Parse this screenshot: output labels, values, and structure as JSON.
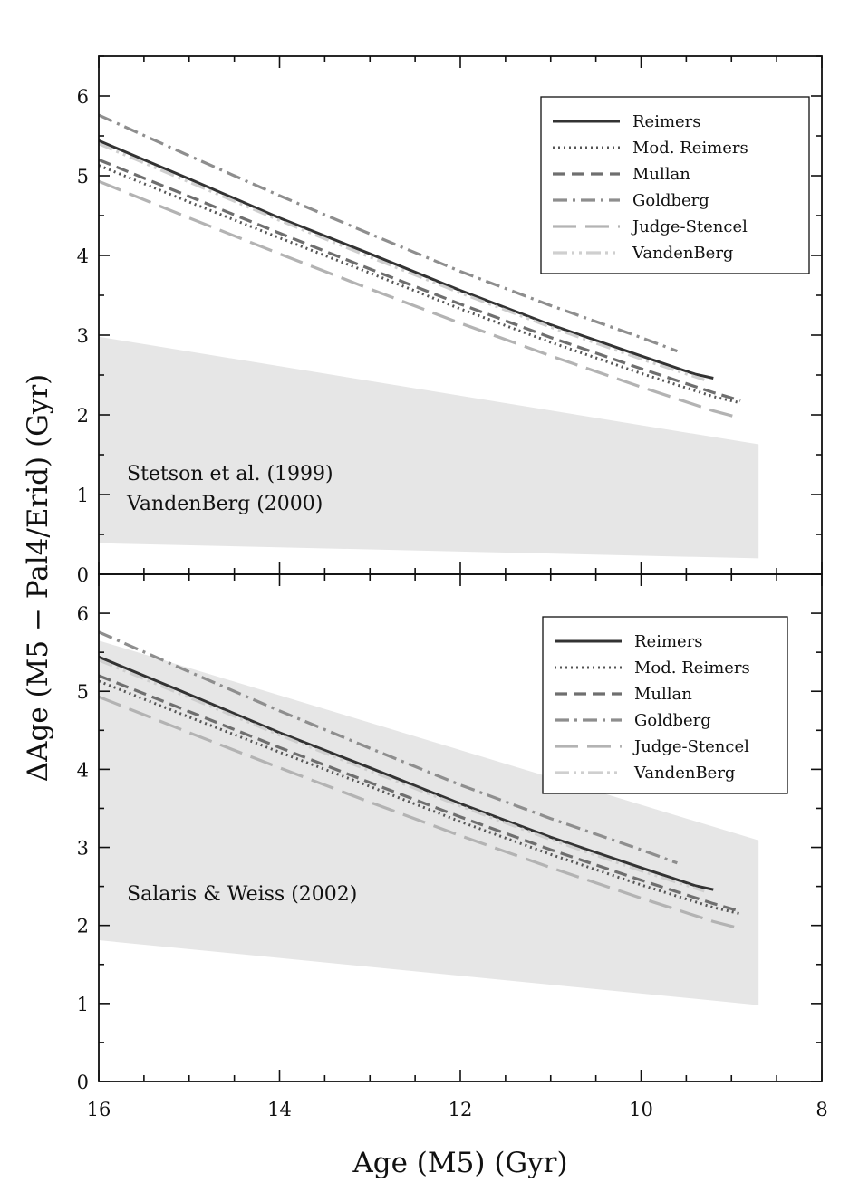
{
  "figure": {
    "xlabel": "Age (M5) (Gyr)",
    "ylabel": "ΔAge (M5 − Pal4/Erid) (Gyr)",
    "xlim": [
      16,
      8
    ],
    "xticks": [
      "16",
      "14",
      "12",
      "10",
      "8"
    ],
    "colors": {
      "band": "#e6e6e6",
      "axes": "#111111",
      "Reimers": "#333333",
      "Mod. Reimers": "#555555",
      "Mullan": "#6f6f6f",
      "Goldberg": "#8e8e8e",
      "Judge-Stencel": "#b3b3b3",
      "VandenBerg": "#cfcfcf"
    }
  },
  "chart_data": [
    {
      "type": "line",
      "panel": "top",
      "ylim": [
        0,
        6.5
      ],
      "yticks": [
        "0",
        "1",
        "2",
        "3",
        "4",
        "5",
        "6"
      ],
      "annotation": [
        "Stetson et al. (1999)",
        "VandenBerg (2000)"
      ],
      "legend_position": "top-right",
      "band": {
        "x": [
          16,
          8.7
        ],
        "upper": [
          2.98,
          1.63
        ],
        "lower": [
          0.39,
          0.2
        ]
      },
      "series": [
        {
          "name": "Reimers",
          "style": "solid",
          "x": [
            16,
            15,
            14,
            13,
            12,
            11,
            10,
            9.4,
            9.2
          ],
          "y": [
            5.44,
            4.96,
            4.47,
            4.02,
            3.56,
            3.13,
            2.74,
            2.51,
            2.46
          ]
        },
        {
          "name": "Mod. Reimers",
          "style": "dotted",
          "x": [
            16,
            15,
            14,
            13,
            12,
            11,
            10,
            9.2,
            8.9
          ],
          "y": [
            5.13,
            4.67,
            4.22,
            3.78,
            3.33,
            2.91,
            2.52,
            2.23,
            2.15
          ]
        },
        {
          "name": "Mullan",
          "style": "dashed",
          "x": [
            16,
            15,
            14,
            13,
            12,
            11,
            10,
            9.2,
            8.9
          ],
          "y": [
            5.2,
            4.74,
            4.28,
            3.83,
            3.39,
            2.97,
            2.58,
            2.28,
            2.18
          ]
        },
        {
          "name": "Goldberg",
          "style": "dashdot",
          "x": [
            16,
            15,
            14,
            13,
            12,
            11,
            10,
            9.6
          ],
          "y": [
            5.76,
            5.25,
            4.75,
            4.27,
            3.8,
            3.37,
            2.97,
            2.8
          ]
        },
        {
          "name": "Judge-Stencel",
          "style": "longdash",
          "x": [
            16,
            15,
            14,
            13,
            12,
            11,
            10,
            9.2,
            8.9
          ],
          "y": [
            4.93,
            4.47,
            4.02,
            3.58,
            3.15,
            2.74,
            2.35,
            2.05,
            1.96
          ]
        },
        {
          "name": "VandenBerg",
          "style": "dashdotdot",
          "x": [
            16,
            15,
            14,
            13,
            12,
            11,
            10,
            9.3
          ],
          "y": [
            5.4,
            4.92,
            4.44,
            3.98,
            3.53,
            3.1,
            2.7,
            2.44
          ]
        }
      ]
    },
    {
      "type": "line",
      "panel": "bottom",
      "ylim": [
        0,
        6.5
      ],
      "yticks": [
        "0",
        "1",
        "2",
        "3",
        "4",
        "5",
        "6"
      ],
      "annotation": [
        "Salaris & Weiss (2002)"
      ],
      "legend_position": "top-right",
      "band": {
        "x": [
          16,
          8.7
        ],
        "upper": [
          5.65,
          3.09
        ],
        "lower": [
          1.81,
          0.98
        ]
      },
      "series": [
        {
          "name": "Reimers",
          "style": "solid",
          "x": [
            16,
            15,
            14,
            13,
            12,
            11,
            10,
            9.4,
            9.2
          ],
          "y": [
            5.44,
            4.96,
            4.47,
            4.02,
            3.56,
            3.13,
            2.74,
            2.51,
            2.46
          ]
        },
        {
          "name": "Mod. Reimers",
          "style": "dotted",
          "x": [
            16,
            15,
            14,
            13,
            12,
            11,
            10,
            9.2,
            8.9
          ],
          "y": [
            5.13,
            4.67,
            4.22,
            3.78,
            3.33,
            2.91,
            2.52,
            2.23,
            2.15
          ]
        },
        {
          "name": "Mullan",
          "style": "dashed",
          "x": [
            16,
            15,
            14,
            13,
            12,
            11,
            10,
            9.2,
            8.9
          ],
          "y": [
            5.2,
            4.74,
            4.28,
            3.83,
            3.39,
            2.97,
            2.58,
            2.28,
            2.18
          ]
        },
        {
          "name": "Goldberg",
          "style": "dashdot",
          "x": [
            16,
            15,
            14,
            13,
            12,
            11,
            10,
            9.6
          ],
          "y": [
            5.76,
            5.25,
            4.75,
            4.27,
            3.8,
            3.37,
            2.97,
            2.8
          ]
        },
        {
          "name": "Judge-Stencel",
          "style": "longdash",
          "x": [
            16,
            15,
            14,
            13,
            12,
            11,
            10,
            9.2,
            8.9
          ],
          "y": [
            4.93,
            4.47,
            4.02,
            3.58,
            3.15,
            2.74,
            2.35,
            2.05,
            1.96
          ]
        },
        {
          "name": "VandenBerg",
          "style": "dashdotdot",
          "x": [
            16,
            15,
            14,
            13,
            12,
            11,
            10,
            9.3
          ],
          "y": [
            5.4,
            4.92,
            4.44,
            3.98,
            3.53,
            3.1,
            2.7,
            2.44
          ]
        }
      ]
    }
  ]
}
